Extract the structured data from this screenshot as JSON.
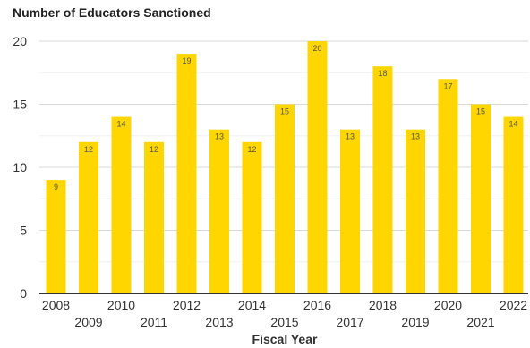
{
  "chart_data": {
    "type": "bar",
    "title": "Number of Educators Sanctioned",
    "xlabel": "Fiscal Year",
    "ylabel": "",
    "categories": [
      "2008",
      "2009",
      "2010",
      "2011",
      "2012",
      "2013",
      "2014",
      "2015",
      "2016",
      "2017",
      "2018",
      "2019",
      "2020",
      "2021",
      "2022"
    ],
    "values": [
      9,
      12,
      14,
      12,
      19,
      13,
      12,
      15,
      20,
      13,
      18,
      13,
      17,
      15,
      14
    ],
    "ylim": [
      0,
      20
    ],
    "yticks": [
      0,
      5,
      10,
      15,
      20
    ],
    "grid": true,
    "legend": "none",
    "bar_color": "#FFD600",
    "data_labels": true
  }
}
